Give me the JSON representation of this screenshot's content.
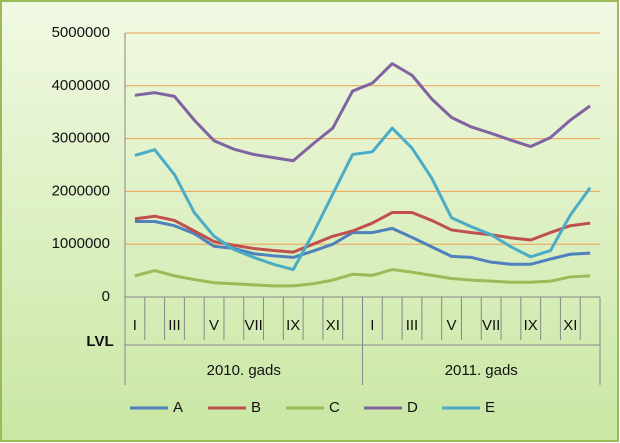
{
  "chart_data": {
    "type": "line",
    "y_axis_label": "LVL",
    "categories": [
      "I",
      null,
      "III",
      null,
      "V",
      null,
      "VII",
      null,
      "IX",
      null,
      "XI",
      null,
      "I",
      null,
      "III",
      null,
      "V",
      null,
      "VII",
      null,
      "IX",
      null,
      "XI",
      null
    ],
    "groups": [
      "2010. gads",
      "2011. gads"
    ],
    "ylim": [
      0,
      5000000
    ],
    "yticks": [
      0,
      1000000,
      2000000,
      3000000,
      4000000,
      5000000
    ],
    "grid": true,
    "legend": "bottom",
    "series": [
      {
        "name": "A",
        "color": "#4f81bd",
        "values": [
          1430000,
          1430000,
          1350000,
          1200000,
          960000,
          920000,
          820000,
          780000,
          750000,
          870000,
          1000000,
          1220000,
          1220000,
          1300000,
          1130000,
          950000,
          770000,
          750000,
          660000,
          620000,
          620000,
          720000,
          810000,
          830000
        ]
      },
      {
        "name": "B",
        "color": "#c0504d",
        "values": [
          1480000,
          1530000,
          1450000,
          1250000,
          1050000,
          980000,
          920000,
          880000,
          850000,
          1000000,
          1150000,
          1250000,
          1400000,
          1600000,
          1600000,
          1450000,
          1270000,
          1220000,
          1180000,
          1120000,
          1080000,
          1220000,
          1350000,
          1400000
        ]
      },
      {
        "name": "C",
        "color": "#9bbb59",
        "values": [
          400000,
          500000,
          400000,
          330000,
          270000,
          250000,
          230000,
          210000,
          210000,
          250000,
          320000,
          430000,
          410000,
          520000,
          470000,
          410000,
          350000,
          320000,
          300000,
          280000,
          280000,
          300000,
          380000,
          400000
        ]
      },
      {
        "name": "D",
        "color": "#8064a2",
        "values": [
          3820000,
          3870000,
          3800000,
          3350000,
          2960000,
          2800000,
          2700000,
          2640000,
          2580000,
          2900000,
          3200000,
          3900000,
          4050000,
          4420000,
          4200000,
          3750000,
          3400000,
          3220000,
          3100000,
          2970000,
          2850000,
          3020000,
          3350000,
          3620000
        ]
      },
      {
        "name": "E",
        "color": "#4bacc6",
        "values": [
          2680000,
          2790000,
          2320000,
          1600000,
          1150000,
          900000,
          750000,
          620000,
          520000,
          1200000,
          1950000,
          2700000,
          2750000,
          3200000,
          2820000,
          2250000,
          1500000,
          1330000,
          1180000,
          950000,
          760000,
          880000,
          1550000,
          2070000
        ]
      }
    ]
  }
}
